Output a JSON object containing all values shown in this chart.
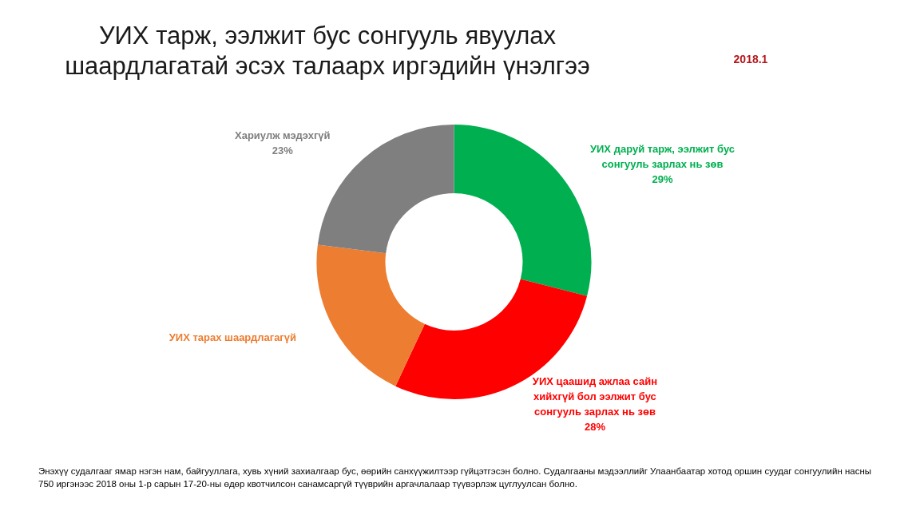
{
  "chart_data": {
    "type": "donut",
    "title": "УИХ тарж, ээлжит бус сонгууль явуулах шаардлагатай эсэх талаарх иргэдийн үнэлгээ",
    "subtitle": "2018.1",
    "categories": [
      "УИХ даруй тарж, ээлжит бус сонгууль зарлах нь зөв",
      "УИХ цаашид ажлаа сайн хийхгүй бол ээлжит бус сонгууль зарлах нь зөв",
      "УИХ тарах шаардлагагүй",
      "Хариулж мэдэхгүй"
    ],
    "values": [
      29,
      28,
      20,
      23
    ],
    "colors": [
      "#00b050",
      "#ff0000",
      "#ed7d31",
      "#7f7f7f"
    ],
    "value_labels": [
      "29%",
      "28%",
      null,
      "23%"
    ],
    "annotations": [
      "Энэхүү судалгааг ямар нэгэн нам, байгууллага, хувь хүний захиалгаар бус, өөрийн санхүүжилтээр гүйцэтгэсэн болно. Судалгааны мэдээллийг Улаанбаатар хотод оршин суудаг сонгуулийн насны 750 иргэнээс 2018 оны 1-р сарын 17-20-ны өдөр квотчилсон санамсаргүй түүврийн аргачлалаар түүвэрлэж цуглуулсан болно."
    ]
  }
}
